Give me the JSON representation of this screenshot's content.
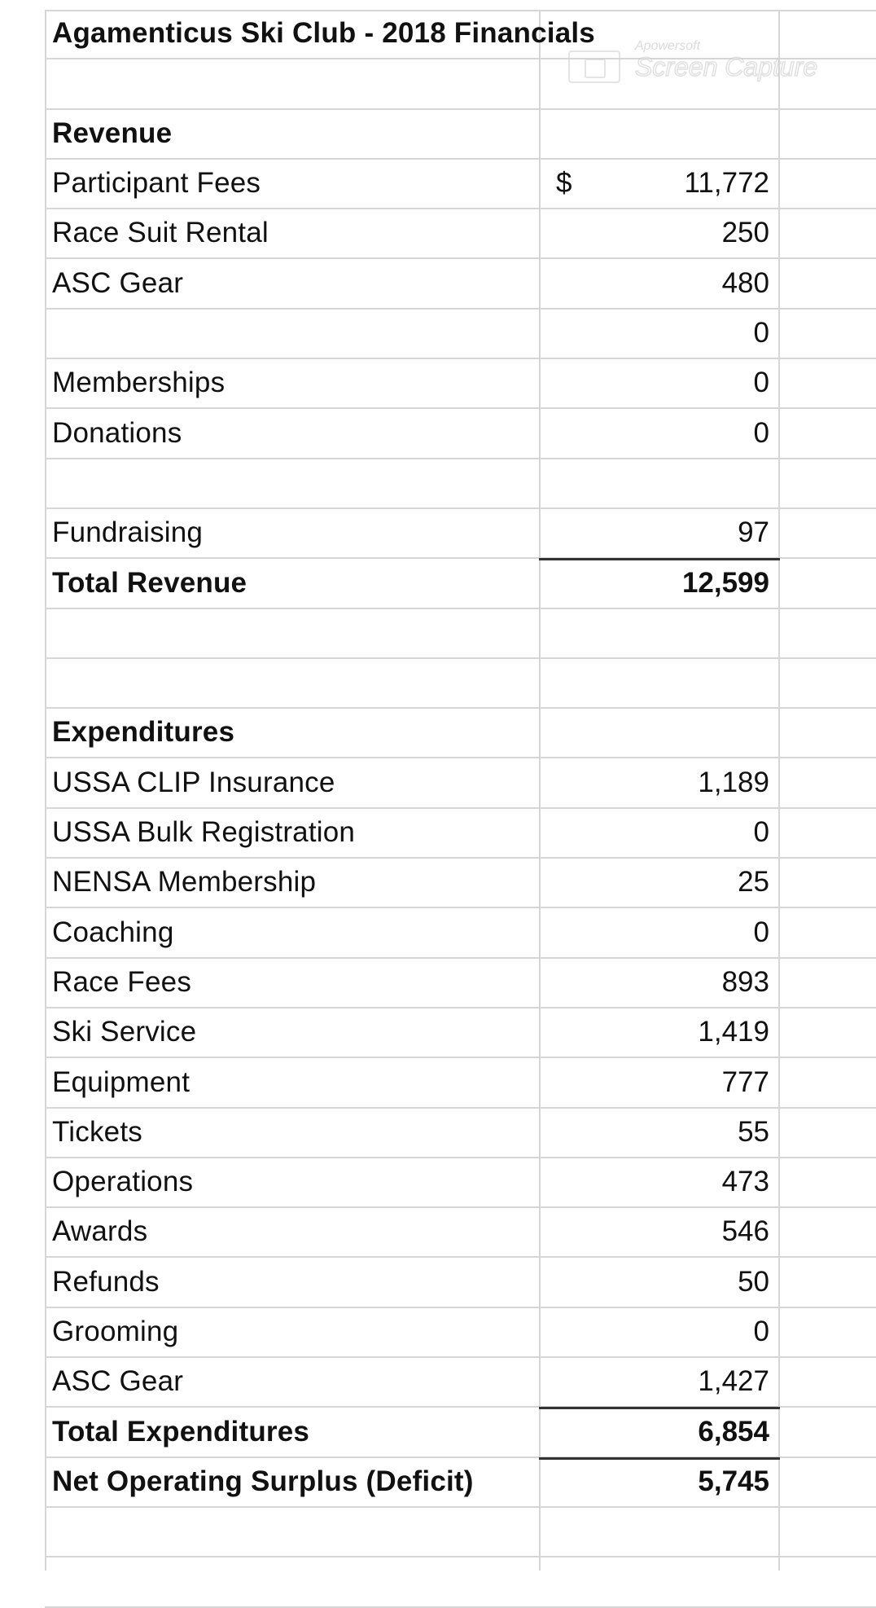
{
  "title": "Agamenticus Ski Club - 2018 Financials",
  "watermark": {
    "line1": "Apowersoft",
    "line2": "Screen Capture"
  },
  "currency_symbol": "$",
  "revenue": {
    "heading": "Revenue",
    "items": [
      {
        "label": "Participant Fees",
        "value": "11,772"
      },
      {
        "label": "Race Suit Rental",
        "value": "250"
      },
      {
        "label": "ASC Gear",
        "value": "480"
      },
      {
        "label": "",
        "value": "0"
      },
      {
        "label": "Memberships",
        "value": "0"
      },
      {
        "label": "Donations",
        "value": "0"
      },
      {
        "label": "",
        "value": ""
      },
      {
        "label": "Fundraising",
        "value": "97"
      }
    ],
    "total_label": "Total Revenue",
    "total_value": "12,599"
  },
  "expenditures": {
    "heading": "Expenditures",
    "items": [
      {
        "label": "USSA CLIP Insurance",
        "value": "1,189"
      },
      {
        "label": "USSA Bulk Registration",
        "value": "0"
      },
      {
        "label": "NENSA Membership",
        "value": "25"
      },
      {
        "label": "Coaching",
        "value": "0"
      },
      {
        "label": "Race Fees",
        "value": "893"
      },
      {
        "label": "Ski Service",
        "value": "1,419"
      },
      {
        "label": "Equipment",
        "value": "777"
      },
      {
        "label": "Tickets",
        "value": "55"
      },
      {
        "label": "Operations",
        "value": "473"
      },
      {
        "label": "Awards",
        "value": "546"
      },
      {
        "label": "Refunds",
        "value": "50"
      },
      {
        "label": "Grooming",
        "value": "0"
      },
      {
        "label": "ASC Gear",
        "value": "1,427"
      }
    ],
    "total_label": "Total Expenditures",
    "total_value": "6,854"
  },
  "net": {
    "label": "Net Operating Surplus (Deficit)",
    "value": "5,745"
  }
}
